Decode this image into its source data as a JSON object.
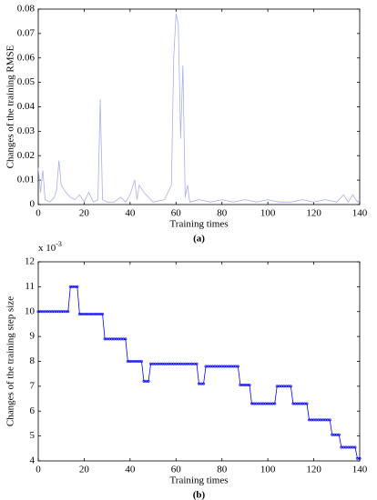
{
  "chart_data": [
    {
      "type": "line",
      "xlabel": "Training times",
      "ylabel": "Changes of the training RMSE",
      "caption": "(a)",
      "xlim": [
        0,
        140
      ],
      "xticks": [
        0,
        20,
        40,
        60,
        80,
        100,
        120,
        140
      ],
      "ylim": [
        0,
        0.08
      ],
      "yticks": [
        0,
        0.01,
        0.02,
        0.03,
        0.04,
        0.05,
        0.06,
        0.07,
        0.08
      ],
      "markers": false,
      "x": [
        0,
        1,
        2,
        3,
        5,
        7,
        8,
        9,
        10,
        12,
        14,
        16,
        18,
        20,
        22,
        24,
        26,
        27,
        28,
        30,
        33,
        36,
        38,
        40,
        42,
        43,
        44,
        46,
        50,
        55,
        58,
        59,
        60,
        61,
        62,
        63,
        64,
        65,
        66,
        70,
        75,
        80,
        85,
        90,
        95,
        100,
        105,
        110,
        115,
        120,
        125,
        130,
        133,
        135,
        137,
        139,
        140
      ],
      "series": [
        {
          "color": "#a9aef0",
          "values": [
            0.015,
            0.005,
            0.014,
            0.002,
            0.001,
            0.003,
            0.006,
            0.018,
            0.008,
            0.005,
            0.003,
            0.002,
            0.004,
            0.001,
            0.005,
            0.001,
            0.002,
            0.043,
            0.002,
            0.001,
            0.001,
            0.003,
            0.001,
            0.004,
            0.01,
            0.002,
            0.008,
            0.005,
            0.001,
            0.002,
            0.008,
            0.06,
            0.078,
            0.074,
            0.027,
            0.057,
            0.003,
            0.008,
            0.001,
            0.002,
            0.001,
            0.002,
            0.001,
            0.002,
            0.001,
            0.002,
            0.001,
            0.001,
            0.002,
            0.001,
            0.002,
            0.001,
            0.004,
            0.001,
            0.004,
            0.001,
            0.002
          ]
        }
      ]
    },
    {
      "type": "line",
      "xlabel": "Training times",
      "ylabel": "Changes of the training step size",
      "caption": "(b)",
      "scale_label": "x 10",
      "scale_exponent": "-3",
      "xlim": [
        0,
        140
      ],
      "xticks": [
        0,
        20,
        40,
        60,
        80,
        100,
        120,
        140
      ],
      "ylim": [
        4,
        12
      ],
      "yticks": [
        4,
        5,
        6,
        7,
        8,
        9,
        10,
        11,
        12
      ],
      "markers": true,
      "x": [
        0,
        1,
        2,
        3,
        4,
        5,
        6,
        7,
        8,
        9,
        10,
        11,
        12,
        13,
        14,
        15,
        16,
        17,
        18,
        19,
        20,
        21,
        22,
        23,
        24,
        25,
        26,
        27,
        28,
        29,
        30,
        31,
        32,
        33,
        34,
        35,
        36,
        37,
        38,
        39,
        40,
        41,
        42,
        43,
        44,
        45,
        46,
        47,
        48,
        49,
        50,
        51,
        52,
        53,
        54,
        55,
        56,
        57,
        58,
        59,
        60,
        61,
        62,
        63,
        64,
        65,
        66,
        67,
        68,
        69,
        70,
        71,
        72,
        73,
        74,
        75,
        76,
        77,
        78,
        79,
        80,
        81,
        82,
        83,
        84,
        85,
        86,
        87,
        88,
        89,
        90,
        91,
        92,
        93,
        94,
        95,
        96,
        97,
        98,
        99,
        100,
        101,
        102,
        103,
        104,
        105,
        106,
        107,
        108,
        109,
        110,
        111,
        112,
        113,
        114,
        115,
        116,
        117,
        118,
        119,
        120,
        121,
        122,
        123,
        124,
        125,
        126,
        127,
        128,
        129,
        130,
        131,
        132,
        133,
        134,
        135,
        136,
        137,
        138,
        139,
        140
      ],
      "series": [
        {
          "color": "#0000ff",
          "values": [
            10,
            10,
            10,
            10,
            10,
            10,
            10,
            10,
            10,
            10,
            10,
            10,
            10,
            10,
            11,
            11,
            11,
            11,
            9.9,
            9.9,
            9.9,
            9.9,
            9.9,
            9.9,
            9.9,
            9.9,
            9.9,
            9.9,
            9.9,
            8.9,
            8.9,
            8.9,
            8.9,
            8.9,
            8.9,
            8.9,
            8.9,
            8.9,
            8.9,
            8,
            8,
            8,
            8,
            8,
            8,
            8,
            7.2,
            7.2,
            7.2,
            7.9,
            7.9,
            7.9,
            7.9,
            7.9,
            7.9,
            7.9,
            7.9,
            7.9,
            7.9,
            7.9,
            7.9,
            7.9,
            7.9,
            7.9,
            7.9,
            7.9,
            7.9,
            7.9,
            7.9,
            7.9,
            7.1,
            7.1,
            7.1,
            7.8,
            7.8,
            7.8,
            7.8,
            7.8,
            7.8,
            7.8,
            7.8,
            7.8,
            7.8,
            7.8,
            7.8,
            7.8,
            7.8,
            7.8,
            7.05,
            7.05,
            7.05,
            7.05,
            7.05,
            6.3,
            6.3,
            6.3,
            6.3,
            6.3,
            6.3,
            6.3,
            6.3,
            6.3,
            6.3,
            6.3,
            7,
            7,
            7,
            7,
            7,
            7,
            7,
            6.3,
            6.3,
            6.3,
            6.3,
            6.3,
            6.3,
            6.3,
            5.65,
            5.65,
            5.65,
            5.65,
            5.65,
            5.65,
            5.65,
            5.65,
            5.65,
            5.65,
            5.05,
            5.05,
            5.05,
            5.05,
            4.55,
            4.55,
            4.55,
            4.55,
            4.55,
            4.55,
            4.55,
            4.1,
            4.1
          ]
        }
      ]
    }
  ]
}
